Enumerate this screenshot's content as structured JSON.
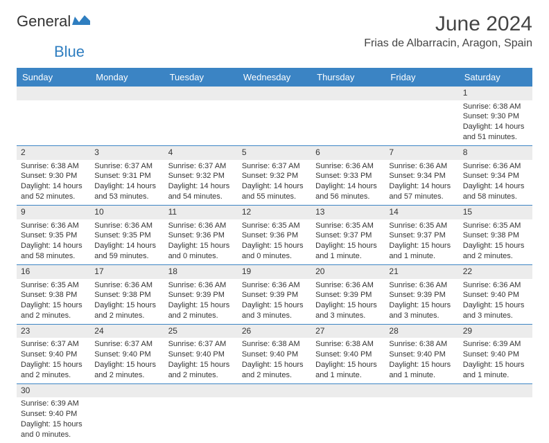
{
  "logo": {
    "text1": "General",
    "text2": "Blue"
  },
  "title": "June 2024",
  "location": "Frias de Albarracin, Aragon, Spain",
  "colors": {
    "headerBg": "#3b84c4",
    "headerText": "#ffffff",
    "dayBg": "#ececec",
    "border": "#3b84c4",
    "logoBlue": "#2f7ec0"
  },
  "dayHeaders": [
    "Sunday",
    "Monday",
    "Tuesday",
    "Wednesday",
    "Thursday",
    "Friday",
    "Saturday"
  ],
  "weeks": [
    [
      null,
      null,
      null,
      null,
      null,
      null,
      {
        "n": "1",
        "sr": "Sunrise: 6:38 AM",
        "ss": "Sunset: 9:30 PM",
        "dl1": "Daylight: 14 hours",
        "dl2": "and 51 minutes."
      }
    ],
    [
      {
        "n": "2",
        "sr": "Sunrise: 6:38 AM",
        "ss": "Sunset: 9:30 PM",
        "dl1": "Daylight: 14 hours",
        "dl2": "and 52 minutes."
      },
      {
        "n": "3",
        "sr": "Sunrise: 6:37 AM",
        "ss": "Sunset: 9:31 PM",
        "dl1": "Daylight: 14 hours",
        "dl2": "and 53 minutes."
      },
      {
        "n": "4",
        "sr": "Sunrise: 6:37 AM",
        "ss": "Sunset: 9:32 PM",
        "dl1": "Daylight: 14 hours",
        "dl2": "and 54 minutes."
      },
      {
        "n": "5",
        "sr": "Sunrise: 6:37 AM",
        "ss": "Sunset: 9:32 PM",
        "dl1": "Daylight: 14 hours",
        "dl2": "and 55 minutes."
      },
      {
        "n": "6",
        "sr": "Sunrise: 6:36 AM",
        "ss": "Sunset: 9:33 PM",
        "dl1": "Daylight: 14 hours",
        "dl2": "and 56 minutes."
      },
      {
        "n": "7",
        "sr": "Sunrise: 6:36 AM",
        "ss": "Sunset: 9:34 PM",
        "dl1": "Daylight: 14 hours",
        "dl2": "and 57 minutes."
      },
      {
        "n": "8",
        "sr": "Sunrise: 6:36 AM",
        "ss": "Sunset: 9:34 PM",
        "dl1": "Daylight: 14 hours",
        "dl2": "and 58 minutes."
      }
    ],
    [
      {
        "n": "9",
        "sr": "Sunrise: 6:36 AM",
        "ss": "Sunset: 9:35 PM",
        "dl1": "Daylight: 14 hours",
        "dl2": "and 58 minutes."
      },
      {
        "n": "10",
        "sr": "Sunrise: 6:36 AM",
        "ss": "Sunset: 9:35 PM",
        "dl1": "Daylight: 14 hours",
        "dl2": "and 59 minutes."
      },
      {
        "n": "11",
        "sr": "Sunrise: 6:36 AM",
        "ss": "Sunset: 9:36 PM",
        "dl1": "Daylight: 15 hours",
        "dl2": "and 0 minutes."
      },
      {
        "n": "12",
        "sr": "Sunrise: 6:35 AM",
        "ss": "Sunset: 9:36 PM",
        "dl1": "Daylight: 15 hours",
        "dl2": "and 0 minutes."
      },
      {
        "n": "13",
        "sr": "Sunrise: 6:35 AM",
        "ss": "Sunset: 9:37 PM",
        "dl1": "Daylight: 15 hours",
        "dl2": "and 1 minute."
      },
      {
        "n": "14",
        "sr": "Sunrise: 6:35 AM",
        "ss": "Sunset: 9:37 PM",
        "dl1": "Daylight: 15 hours",
        "dl2": "and 1 minute."
      },
      {
        "n": "15",
        "sr": "Sunrise: 6:35 AM",
        "ss": "Sunset: 9:38 PM",
        "dl1": "Daylight: 15 hours",
        "dl2": "and 2 minutes."
      }
    ],
    [
      {
        "n": "16",
        "sr": "Sunrise: 6:35 AM",
        "ss": "Sunset: 9:38 PM",
        "dl1": "Daylight: 15 hours",
        "dl2": "and 2 minutes."
      },
      {
        "n": "17",
        "sr": "Sunrise: 6:36 AM",
        "ss": "Sunset: 9:38 PM",
        "dl1": "Daylight: 15 hours",
        "dl2": "and 2 minutes."
      },
      {
        "n": "18",
        "sr": "Sunrise: 6:36 AM",
        "ss": "Sunset: 9:39 PM",
        "dl1": "Daylight: 15 hours",
        "dl2": "and 2 minutes."
      },
      {
        "n": "19",
        "sr": "Sunrise: 6:36 AM",
        "ss": "Sunset: 9:39 PM",
        "dl1": "Daylight: 15 hours",
        "dl2": "and 3 minutes."
      },
      {
        "n": "20",
        "sr": "Sunrise: 6:36 AM",
        "ss": "Sunset: 9:39 PM",
        "dl1": "Daylight: 15 hours",
        "dl2": "and 3 minutes."
      },
      {
        "n": "21",
        "sr": "Sunrise: 6:36 AM",
        "ss": "Sunset: 9:39 PM",
        "dl1": "Daylight: 15 hours",
        "dl2": "and 3 minutes."
      },
      {
        "n": "22",
        "sr": "Sunrise: 6:36 AM",
        "ss": "Sunset: 9:40 PM",
        "dl1": "Daylight: 15 hours",
        "dl2": "and 3 minutes."
      }
    ],
    [
      {
        "n": "23",
        "sr": "Sunrise: 6:37 AM",
        "ss": "Sunset: 9:40 PM",
        "dl1": "Daylight: 15 hours",
        "dl2": "and 2 minutes."
      },
      {
        "n": "24",
        "sr": "Sunrise: 6:37 AM",
        "ss": "Sunset: 9:40 PM",
        "dl1": "Daylight: 15 hours",
        "dl2": "and 2 minutes."
      },
      {
        "n": "25",
        "sr": "Sunrise: 6:37 AM",
        "ss": "Sunset: 9:40 PM",
        "dl1": "Daylight: 15 hours",
        "dl2": "and 2 minutes."
      },
      {
        "n": "26",
        "sr": "Sunrise: 6:38 AM",
        "ss": "Sunset: 9:40 PM",
        "dl1": "Daylight: 15 hours",
        "dl2": "and 2 minutes."
      },
      {
        "n": "27",
        "sr": "Sunrise: 6:38 AM",
        "ss": "Sunset: 9:40 PM",
        "dl1": "Daylight: 15 hours",
        "dl2": "and 1 minute."
      },
      {
        "n": "28",
        "sr": "Sunrise: 6:38 AM",
        "ss": "Sunset: 9:40 PM",
        "dl1": "Daylight: 15 hours",
        "dl2": "and 1 minute."
      },
      {
        "n": "29",
        "sr": "Sunrise: 6:39 AM",
        "ss": "Sunset: 9:40 PM",
        "dl1": "Daylight: 15 hours",
        "dl2": "and 1 minute."
      }
    ],
    [
      {
        "n": "30",
        "sr": "Sunrise: 6:39 AM",
        "ss": "Sunset: 9:40 PM",
        "dl1": "Daylight: 15 hours",
        "dl2": "and 0 minutes."
      },
      null,
      null,
      null,
      null,
      null,
      null
    ]
  ]
}
